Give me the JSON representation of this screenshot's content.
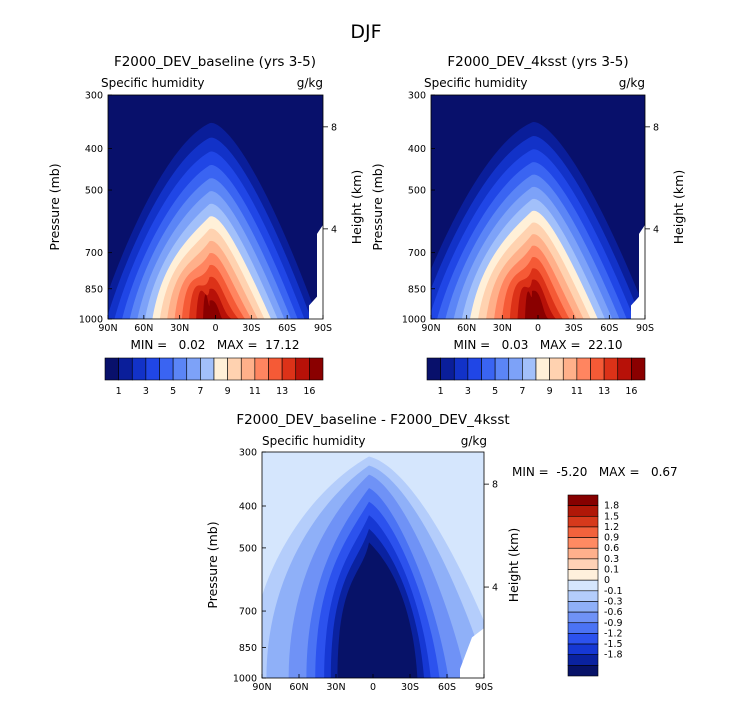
{
  "figure": {
    "title": "DJF"
  },
  "colors": {
    "abs": [
      "#08106b",
      "#0a1e9a",
      "#1232c8",
      "#2046e6",
      "#3a64f2",
      "#5b85f6",
      "#7da2f8",
      "#a2c0fa",
      "#fff0d8",
      "#ffd2b0",
      "#ffb08a",
      "#ff8560",
      "#f55a36",
      "#dc3218",
      "#b71108",
      "#8a0000"
    ],
    "diff": [
      "#071268",
      "#0a22a0",
      "#1638d4",
      "#2c52ee",
      "#4b73f4",
      "#6f92f6",
      "#8fb0f8",
      "#b4cdfb",
      "#d5e6fd",
      "#fff0dc",
      "#ffd2b6",
      "#ffb08c",
      "#ff8a62",
      "#f2623c",
      "#d63a1c",
      "#b01808",
      "#860000"
    ]
  },
  "chart_data": [
    {
      "type": "heatmap",
      "title": "F2000_DEV_baseline (yrs 3-5)",
      "left_label": "Specific humidity",
      "right_label": "g/kg",
      "xlabel": "",
      "ylabel": "Pressure (mb)",
      "y2label": "Height (km)",
      "xticks": [
        "90N",
        "60N",
        "30N",
        "0",
        "30S",
        "60S",
        "90S"
      ],
      "yticks": [
        "300",
        "400",
        "500",
        "700",
        "850",
        "1000"
      ],
      "y2ticks": [
        "8",
        "4"
      ],
      "ylim": [
        300,
        1000
      ],
      "min_max_text": "MIN =   0.02   MAX =  17.12",
      "min": 0.02,
      "max": 17.12,
      "colorbar": {
        "levels": [
          1,
          2,
          3,
          4,
          5,
          6,
          7,
          8,
          9,
          10,
          11,
          12,
          13,
          14,
          16
        ],
        "labels": [
          "1",
          "3",
          "5",
          "7",
          "9",
          "11",
          "13",
          "16"
        ]
      }
    },
    {
      "type": "heatmap",
      "title": "F2000_DEV_4ksst (yrs 3-5)",
      "left_label": "Specific humidity",
      "right_label": "g/kg",
      "xlabel": "",
      "ylabel": "Pressure (mb)",
      "y2label": "Height (km)",
      "xticks": [
        "90N",
        "60N",
        "30N",
        "0",
        "30S",
        "60S",
        "90S"
      ],
      "yticks": [
        "300",
        "400",
        "500",
        "700",
        "850",
        "1000"
      ],
      "y2ticks": [
        "8",
        "4"
      ],
      "ylim": [
        300,
        1000
      ],
      "min_max_text": "MIN =   0.03   MAX =  22.10",
      "min": 0.03,
      "max": 22.1,
      "colorbar": {
        "levels": [
          1,
          2,
          3,
          4,
          5,
          6,
          7,
          8,
          9,
          10,
          11,
          12,
          13,
          14,
          16
        ],
        "labels": [
          "1",
          "3",
          "5",
          "7",
          "9",
          "11",
          "13",
          "16"
        ]
      }
    },
    {
      "type": "heatmap",
      "title": "F2000_DEV_baseline - F2000_DEV_4ksst",
      "left_label": "Specific humidity",
      "right_label": "g/kg",
      "xlabel": "",
      "ylabel": "Pressure (mb)",
      "y2label": "Height (km)",
      "xticks": [
        "90N",
        "60N",
        "30N",
        "0",
        "30S",
        "60S",
        "90S"
      ],
      "yticks": [
        "300",
        "400",
        "500",
        "700",
        "850",
        "1000"
      ],
      "y2ticks": [
        "8",
        "4"
      ],
      "ylim": [
        300,
        1000
      ],
      "min_max_text": "MIN =  -5.20   MAX =   0.67",
      "min": -5.2,
      "max": 0.67,
      "colorbar": {
        "levels": [
          "1.8",
          "1.5",
          "1.2",
          "0.9",
          "0.6",
          "0.3",
          "0.1",
          "0",
          "-0.1",
          "-0.3",
          "-0.6",
          "-0.9",
          "-1.2",
          "-1.5",
          "-1.8"
        ]
      }
    }
  ]
}
